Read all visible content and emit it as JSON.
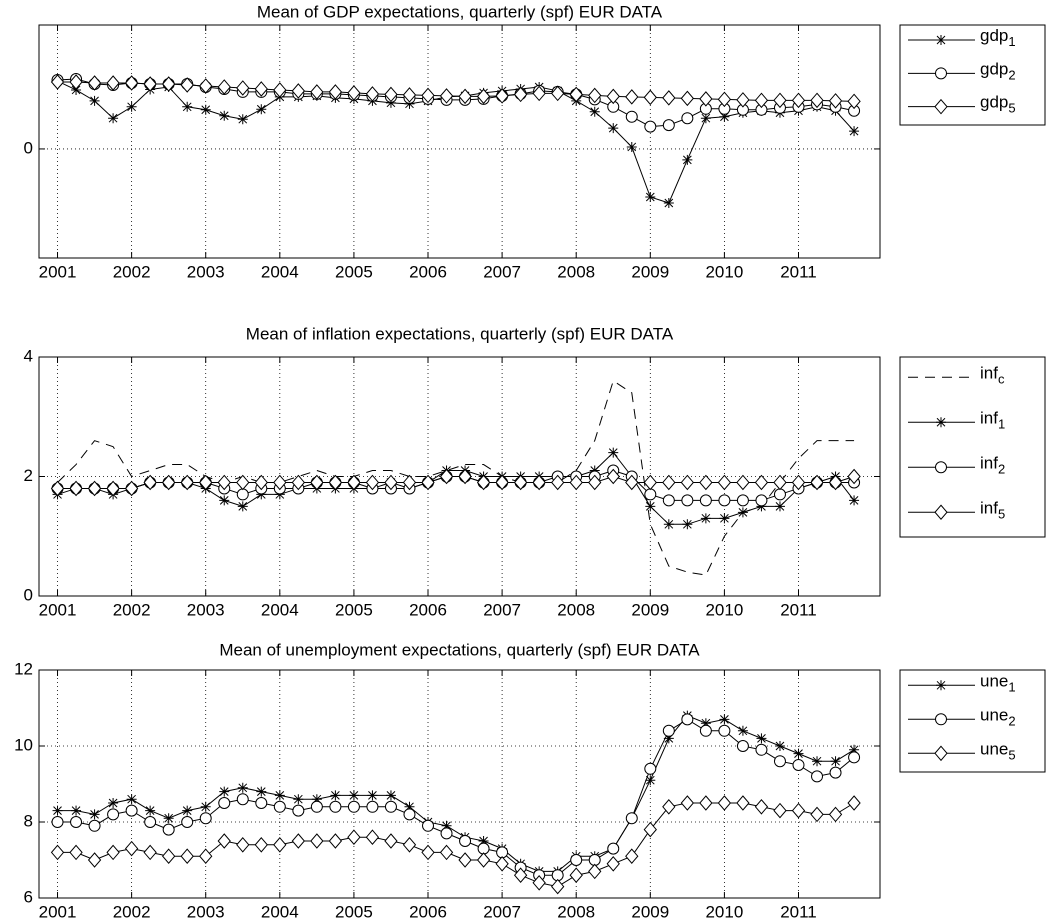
{
  "chart_data": [
    {
      "type": "line",
      "title": "Mean of GDP expectations, quarterly (spf) EUR DATA",
      "x": [
        2001,
        2001.25,
        2001.5,
        2001.75,
        2002,
        2002.25,
        2002.5,
        2002.75,
        2003,
        2003.25,
        2003.5,
        2003.75,
        2004,
        2004.25,
        2004.5,
        2004.75,
        2005,
        2005.25,
        2005.5,
        2005.75,
        2006,
        2006.25,
        2006.5,
        2006.75,
        2007,
        2007.25,
        2007.5,
        2007.75,
        2008,
        2008.25,
        2008.5,
        2008.75,
        2009,
        2009.25,
        2009.5,
        2009.75,
        2010,
        2010.25,
        2010.5,
        2010.75,
        2011,
        2011.25,
        2011.5,
        2011.75
      ],
      "xlim": [
        2000.75,
        2012.1
      ],
      "xticks": [
        2001,
        2002,
        2003,
        2004,
        2005,
        2006,
        2007,
        2008,
        2009,
        2010,
        2011
      ],
      "ylim": [
        -2.2,
        2.5
      ],
      "yticks": [
        0
      ],
      "grid": true,
      "series": [
        {
          "name": "gdp1",
          "color": "#000000",
          "marker": "star",
          "dash": "solid",
          "values": [
            1.37,
            1.19,
            0.97,
            0.62,
            0.85,
            1.2,
            1.25,
            0.85,
            0.79,
            0.67,
            0.6,
            0.8,
            1.05,
            1.05,
            1.07,
            1.03,
            1.01,
            0.97,
            0.93,
            0.91,
            0.97,
            1.05,
            1.07,
            1.13,
            1.17,
            1.21,
            1.25,
            1.17,
            0.97,
            0.75,
            0.42,
            0.04,
            -0.97,
            -1.09,
            -0.22,
            0.62,
            0.65,
            0.73,
            0.77,
            0.73,
            0.77,
            0.85,
            0.77,
            0.36
          ]
        },
        {
          "name": "gdp2",
          "color": "#000000",
          "marker": "circle",
          "dash": "solid",
          "values": [
            1.39,
            1.41,
            1.31,
            1.29,
            1.33,
            1.31,
            1.31,
            1.31,
            1.25,
            1.21,
            1.15,
            1.15,
            1.15,
            1.11,
            1.11,
            1.11,
            1.09,
            1.07,
            1.05,
            1.03,
            1.01,
            0.99,
            0.99,
            1.01,
            1.07,
            1.11,
            1.17,
            1.15,
            1.1,
            1.0,
            0.85,
            0.65,
            0.45,
            0.48,
            0.62,
            0.81,
            0.81,
            0.79,
            0.79,
            0.83,
            0.85,
            0.9,
            0.85,
            0.77
          ]
        },
        {
          "name": "gdp5",
          "color": "#000000",
          "marker": "diamond",
          "dash": "solid",
          "values": [
            1.35,
            1.35,
            1.33,
            1.33,
            1.33,
            1.31,
            1.31,
            1.29,
            1.27,
            1.25,
            1.23,
            1.21,
            1.19,
            1.17,
            1.15,
            1.15,
            1.13,
            1.11,
            1.1,
            1.09,
            1.08,
            1.07,
            1.06,
            1.06,
            1.07,
            1.1,
            1.12,
            1.12,
            1.1,
            1.08,
            1.06,
            1.05,
            1.04,
            1.03,
            1.02,
            1.01,
            1.0,
            0.99,
            0.98,
            0.98,
            0.98,
            0.98,
            0.97,
            0.96
          ]
        }
      ]
    },
    {
      "type": "line",
      "title": "Mean of inflation expectations, quarterly (spf) EUR DATA",
      "x": [
        2001,
        2001.25,
        2001.5,
        2001.75,
        2002,
        2002.25,
        2002.5,
        2002.75,
        2003,
        2003.25,
        2003.5,
        2003.75,
        2004,
        2004.25,
        2004.5,
        2004.75,
        2005,
        2005.25,
        2005.5,
        2005.75,
        2006,
        2006.25,
        2006.5,
        2006.75,
        2007,
        2007.25,
        2007.5,
        2007.75,
        2008,
        2008.25,
        2008.5,
        2008.75,
        2009,
        2009.25,
        2009.5,
        2009.75,
        2010,
        2010.25,
        2010.5,
        2010.75,
        2011,
        2011.25,
        2011.5,
        2011.75
      ],
      "xlim": [
        2000.75,
        2012.1
      ],
      "xticks": [
        2001,
        2002,
        2003,
        2004,
        2005,
        2006,
        2007,
        2008,
        2009,
        2010,
        2011
      ],
      "ylim": [
        0,
        4
      ],
      "yticks": [
        0,
        2,
        4
      ],
      "grid": true,
      "series": [
        {
          "name": "infc",
          "color": "#000000",
          "marker": "none",
          "dash": "dashed",
          "values": [
            1.9,
            2.2,
            2.6,
            2.5,
            2.0,
            2.1,
            2.2,
            2.2,
            2.0,
            1.9,
            2.0,
            1.9,
            1.9,
            2.0,
            2.1,
            2.0,
            2.0,
            2.1,
            2.1,
            2.0,
            2.0,
            2.1,
            2.2,
            2.2,
            2.0,
            1.9,
            1.9,
            1.9,
            2.1,
            2.6,
            3.6,
            3.4,
            1.2,
            0.5,
            0.4,
            0.35,
            1.0,
            1.4,
            1.5,
            1.9,
            2.3,
            2.6,
            2.6,
            2.6
          ]
        },
        {
          "name": "inf1",
          "color": "#000000",
          "marker": "star",
          "dash": "solid",
          "values": [
            1.7,
            1.8,
            1.8,
            1.7,
            1.8,
            1.9,
            1.9,
            1.9,
            1.8,
            1.6,
            1.5,
            1.7,
            1.7,
            1.8,
            1.8,
            1.8,
            1.8,
            1.8,
            1.9,
            1.8,
            1.9,
            2.1,
            2.1,
            2.0,
            2.0,
            2.0,
            2.0,
            2.0,
            2.0,
            2.1,
            2.4,
            2.0,
            1.5,
            1.2,
            1.2,
            1.3,
            1.3,
            1.4,
            1.5,
            1.5,
            1.8,
            1.9,
            2.0,
            1.6
          ]
        },
        {
          "name": "inf2",
          "color": "#000000",
          "marker": "circle",
          "dash": "solid",
          "values": [
            1.8,
            1.8,
            1.8,
            1.8,
            1.8,
            1.9,
            1.9,
            1.9,
            1.9,
            1.8,
            1.7,
            1.8,
            1.8,
            1.8,
            1.9,
            1.9,
            1.9,
            1.8,
            1.8,
            1.8,
            1.9,
            2.0,
            2.0,
            1.9,
            1.9,
            1.9,
            1.9,
            2.0,
            2.0,
            2.0,
            2.1,
            2.0,
            1.7,
            1.6,
            1.6,
            1.6,
            1.6,
            1.6,
            1.6,
            1.7,
            1.8,
            1.9,
            1.9,
            1.9
          ]
        },
        {
          "name": "inf5",
          "color": "#000000",
          "marker": "diamond",
          "dash": "solid",
          "values": [
            1.8,
            1.8,
            1.8,
            1.8,
            1.8,
            1.9,
            1.9,
            1.9,
            1.9,
            1.9,
            1.9,
            1.9,
            1.9,
            1.9,
            1.9,
            1.9,
            1.9,
            1.9,
            1.9,
            1.9,
            1.9,
            2.0,
            2.0,
            1.9,
            1.9,
            1.9,
            1.9,
            1.9,
            1.9,
            1.9,
            2.0,
            1.9,
            1.9,
            1.9,
            1.9,
            1.9,
            1.9,
            1.9,
            1.9,
            1.9,
            1.9,
            1.9,
            1.9,
            2.0
          ]
        }
      ]
    },
    {
      "type": "line",
      "title": "Mean of unemployment expectations, quarterly (spf) EUR DATA",
      "x": [
        2001,
        2001.25,
        2001.5,
        2001.75,
        2002,
        2002.25,
        2002.5,
        2002.75,
        2003,
        2003.25,
        2003.5,
        2003.75,
        2004,
        2004.25,
        2004.5,
        2004.75,
        2005,
        2005.25,
        2005.5,
        2005.75,
        2006,
        2006.25,
        2006.5,
        2006.75,
        2007,
        2007.25,
        2007.5,
        2007.75,
        2008,
        2008.25,
        2008.5,
        2008.75,
        2009,
        2009.25,
        2009.5,
        2009.75,
        2010,
        2010.25,
        2010.5,
        2010.75,
        2011,
        2011.25,
        2011.5,
        2011.75
      ],
      "xlim": [
        2000.75,
        2012.1
      ],
      "xticks": [
        2001,
        2002,
        2003,
        2004,
        2005,
        2006,
        2007,
        2008,
        2009,
        2010,
        2011
      ],
      "ylim": [
        6,
        12
      ],
      "yticks": [
        6,
        8,
        10,
        12
      ],
      "grid": true,
      "series": [
        {
          "name": "une1",
          "color": "#000000",
          "marker": "star",
          "dash": "solid",
          "values": [
            8.3,
            8.3,
            8.2,
            8.5,
            8.6,
            8.3,
            8.1,
            8.3,
            8.4,
            8.8,
            8.9,
            8.8,
            8.7,
            8.6,
            8.6,
            8.7,
            8.7,
            8.7,
            8.7,
            8.4,
            8.0,
            7.9,
            7.6,
            7.5,
            7.3,
            6.9,
            6.7,
            6.7,
            7.1,
            7.1,
            7.3,
            8.1,
            9.1,
            10.2,
            10.8,
            10.6,
            10.7,
            10.4,
            10.2,
            10.0,
            9.8,
            9.6,
            9.6,
            9.9
          ]
        },
        {
          "name": "une2",
          "color": "#000000",
          "marker": "circle",
          "dash": "solid",
          "values": [
            8.0,
            8.0,
            7.9,
            8.2,
            8.3,
            8.0,
            7.8,
            8.0,
            8.1,
            8.5,
            8.6,
            8.5,
            8.4,
            8.3,
            8.4,
            8.4,
            8.4,
            8.4,
            8.4,
            8.2,
            7.9,
            7.7,
            7.5,
            7.3,
            7.2,
            6.8,
            6.6,
            6.6,
            7.0,
            7.0,
            7.3,
            8.1,
            9.4,
            10.4,
            10.7,
            10.4,
            10.4,
            10.0,
            9.9,
            9.6,
            9.5,
            9.2,
            9.3,
            9.7
          ]
        },
        {
          "name": "une5",
          "color": "#000000",
          "marker": "diamond",
          "dash": "solid",
          "values": [
            7.2,
            7.2,
            7.0,
            7.2,
            7.3,
            7.2,
            7.1,
            7.1,
            7.1,
            7.5,
            7.4,
            7.4,
            7.4,
            7.5,
            7.5,
            7.5,
            7.6,
            7.6,
            7.5,
            7.4,
            7.2,
            7.2,
            7.0,
            7.0,
            6.9,
            6.6,
            6.4,
            6.3,
            6.6,
            6.7,
            6.9,
            7.1,
            7.8,
            8.4,
            8.5,
            8.5,
            8.5,
            8.5,
            8.4,
            8.3,
            8.3,
            8.2,
            8.2,
            8.5
          ]
        }
      ]
    }
  ]
}
